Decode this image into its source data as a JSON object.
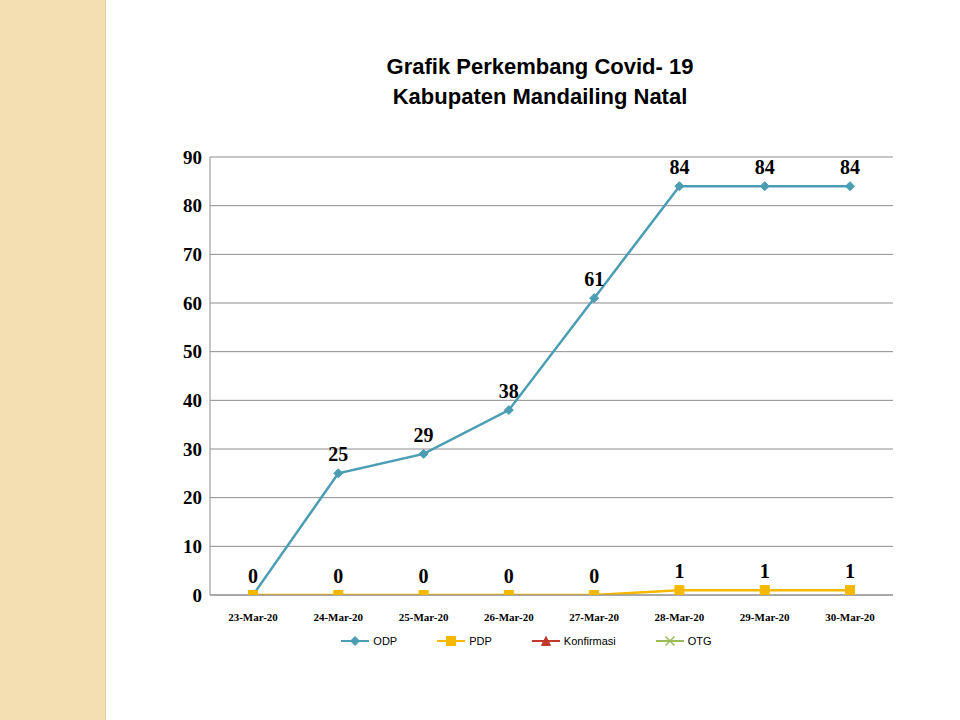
{
  "chart_data": {
    "type": "line",
    "title": "Grafik Perkembang Covid- 19",
    "subtitle": "Kabupaten Mandailing Natal",
    "categories": [
      "23-Mar-20",
      "24-Mar-20",
      "25-Mar-20",
      "26-Mar-20",
      "27-Mar-20",
      "28-Mar-20",
      "29-Mar-20",
      "30-Mar-20"
    ],
    "series": [
      {
        "name": "ODP",
        "color": "#4a9db3",
        "marker": "diamond",
        "data_labels": true,
        "values": [
          0,
          25,
          29,
          38,
          61,
          84,
          84,
          84
        ],
        "value_labels": [
          null,
          "25",
          "29",
          "38",
          "61",
          "84",
          "84",
          "84"
        ]
      },
      {
        "name": "PDP",
        "color": "#f5b800",
        "marker": "square",
        "data_labels": true,
        "values": [
          0,
          0,
          0,
          0,
          0,
          1,
          1,
          1
        ]
      },
      {
        "name": "Konfirmasi",
        "color": "#c0392b",
        "marker": "triangle",
        "data_labels": false,
        "values": [
          null,
          null,
          null,
          null,
          null,
          null,
          null,
          null
        ]
      },
      {
        "name": "OTG",
        "color": "#9bbb59",
        "marker": "x",
        "data_labels": false,
        "values": [
          null,
          null,
          null,
          null,
          null,
          null,
          null,
          null
        ]
      }
    ],
    "ylim": [
      0,
      90
    ],
    "yticks": [
      0,
      10,
      20,
      30,
      40,
      50,
      60,
      70,
      80,
      90
    ],
    "grid": true,
    "legend": "bottom"
  }
}
